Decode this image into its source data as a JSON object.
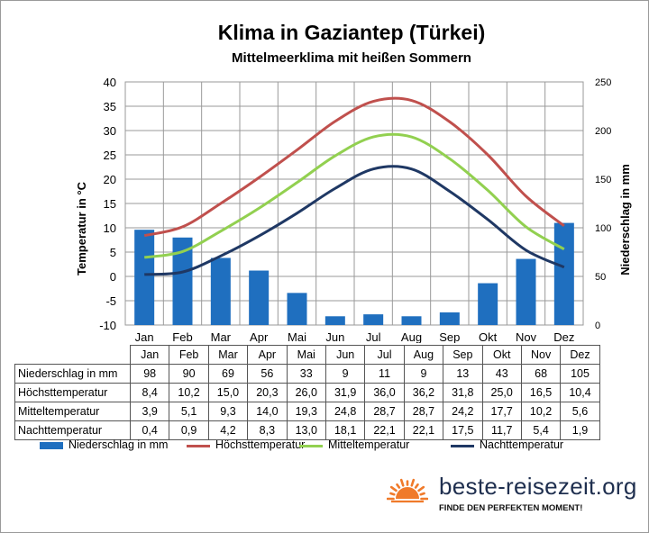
{
  "chart_data": {
    "type": "bar+line",
    "title": "Klima in Gaziantep (Türkei)",
    "subtitle": "Mittelmeerklima mit heißen Sommern",
    "categories": [
      "Jan",
      "Feb",
      "Mar",
      "Apr",
      "Mai",
      "Jun",
      "Jul",
      "Aug",
      "Sep",
      "Okt",
      "Nov",
      "Dez"
    ],
    "y_left": {
      "label": "Temperatur in °C",
      "min": -10,
      "max": 40,
      "ticks": [
        "40",
        "35",
        "30",
        "25",
        "20",
        "15",
        "10",
        "5",
        "0",
        "-5",
        "-10"
      ]
    },
    "y_right": {
      "label": "Niederschlag in mm",
      "min": 0,
      "max": 250,
      "ticks": [
        "250",
        "200",
        "150",
        "100",
        "50",
        "0"
      ]
    },
    "grid": true,
    "legend_position": "bottom",
    "series": [
      {
        "name": "Niederschlag in mm",
        "type": "bar",
        "axis": "right",
        "color": "#1f6fbf",
        "values": [
          98,
          90,
          69,
          56,
          33,
          9,
          11,
          9,
          13,
          43,
          68,
          105
        ],
        "labels": [
          "98",
          "90",
          "69",
          "56",
          "33",
          "9",
          "11",
          "9",
          "13",
          "43",
          "68",
          "105"
        ]
      },
      {
        "name": "Höchsttemperatur",
        "type": "line",
        "axis": "left",
        "color": "#c0504d",
        "values": [
          8.4,
          10.2,
          15.0,
          20.3,
          26.0,
          31.9,
          36.0,
          36.2,
          31.8,
          25.0,
          16.5,
          10.4
        ],
        "labels": [
          "8,4",
          "10,2",
          "15,0",
          "20,3",
          "26,0",
          "31,9",
          "36,0",
          "36,2",
          "31,8",
          "25,0",
          "16,5",
          "10,4"
        ]
      },
      {
        "name": "Mitteltemperatur",
        "type": "line",
        "axis": "left",
        "color": "#92d050",
        "values": [
          3.9,
          5.1,
          9.3,
          14.0,
          19.3,
          24.8,
          28.7,
          28.7,
          24.2,
          17.7,
          10.2,
          5.6
        ],
        "labels": [
          "3,9",
          "5,1",
          "9,3",
          "14,0",
          "19,3",
          "24,8",
          "28,7",
          "28,7",
          "24,2",
          "17,7",
          "10,2",
          "5,6"
        ]
      },
      {
        "name": "Nachttemperatur",
        "type": "line",
        "axis": "left",
        "color": "#1f3864",
        "values": [
          0.4,
          0.9,
          4.2,
          8.3,
          13.0,
          18.1,
          22.1,
          22.1,
          17.5,
          11.7,
          5.4,
          1.9
        ],
        "labels": [
          "0,4",
          "0,9",
          "4,2",
          "8,3",
          "13,0",
          "18,1",
          "22,1",
          "22,1",
          "17,5",
          "11,7",
          "5,4",
          "1,9"
        ]
      }
    ]
  },
  "brand": {
    "name": "beste-reisezeit.org",
    "slogan": "FINDE DEN PERFEKTEN MOMENT!",
    "sun_color": "#f07a2a"
  }
}
